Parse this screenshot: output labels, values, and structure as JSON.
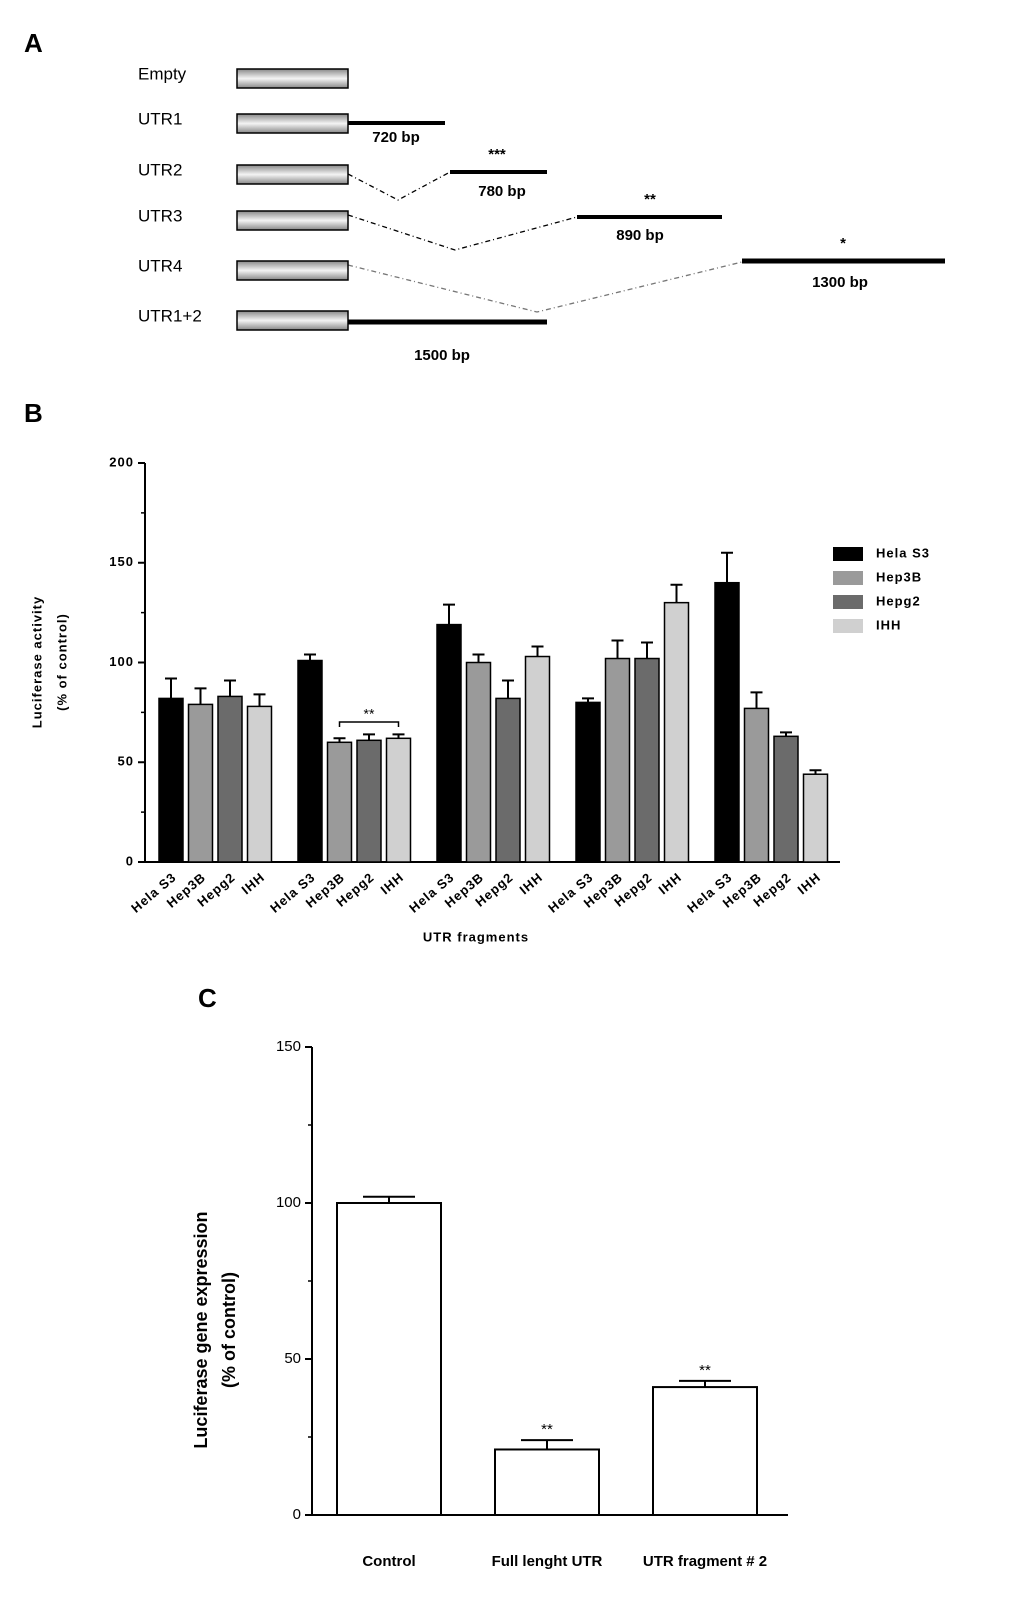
{
  "panel_labels": [
    "A",
    "B",
    "C"
  ],
  "diagram": {
    "rows": [
      {
        "name": "Empty"
      },
      {
        "name": "UTR1",
        "size": "720 bp"
      },
      {
        "name": "UTR2",
        "size": "780 bp",
        "mark": "***"
      },
      {
        "name": "UTR3",
        "size": "890 bp",
        "mark": "**"
      },
      {
        "name": "UTR4",
        "size": "1300 bp",
        "mark": "*"
      },
      {
        "name": "UTR1+2",
        "size": "1500 bp"
      }
    ]
  },
  "chart_data": [
    {
      "type": "bar",
      "ylabel": [
        "Luciferase activity",
        "(% of control)"
      ],
      "xlabel": "UTR fragments",
      "categories": [
        null,
        null,
        null,
        null,
        null
      ],
      "series": [
        {
          "name": "Hela S3",
          "color": "#000000",
          "values": [
            82,
            101,
            119,
            80,
            140
          ],
          "errors": [
            10,
            3,
            10,
            2,
            15
          ]
        },
        {
          "name": "Hep3B",
          "color": "#9a9a9a",
          "values": [
            79,
            60,
            100,
            102,
            77
          ],
          "errors": [
            8,
            2,
            4,
            9,
            8
          ]
        },
        {
          "name": "Hepg2",
          "color": "#6b6b6b",
          "values": [
            83,
            61,
            82,
            102,
            63
          ],
          "errors": [
            8,
            3,
            9,
            8,
            2
          ]
        },
        {
          "name": "IHH",
          "color": "#d0d0d0",
          "values": [
            78,
            62,
            103,
            130,
            44
          ],
          "errors": [
            6,
            2,
            5,
            9,
            2
          ]
        }
      ],
      "ylim": [
        0,
        200
      ],
      "yticks": [
        0,
        50,
        100,
        150,
        200
      ],
      "minor_yticks": [
        25,
        75,
        125,
        175
      ],
      "legend": "right",
      "annotations": [
        {
          "text": "**"
        }
      ]
    },
    {
      "type": "bar",
      "ylabel": [
        "Luciferase gene expression",
        "(% of control)"
      ],
      "categories": [
        "Control",
        "Full lenght UTR",
        "UTR fragment # 2"
      ],
      "values": [
        100,
        21,
        41
      ],
      "errors": [
        2,
        3,
        2
      ],
      "color": "#ffffff",
      "value_annotations": [
        null,
        "**",
        "**"
      ],
      "ylim": [
        0,
        150
      ],
      "yticks": [
        0,
        50,
        100,
        150
      ],
      "minor_yticks": [
        25,
        75,
        125
      ]
    }
  ]
}
